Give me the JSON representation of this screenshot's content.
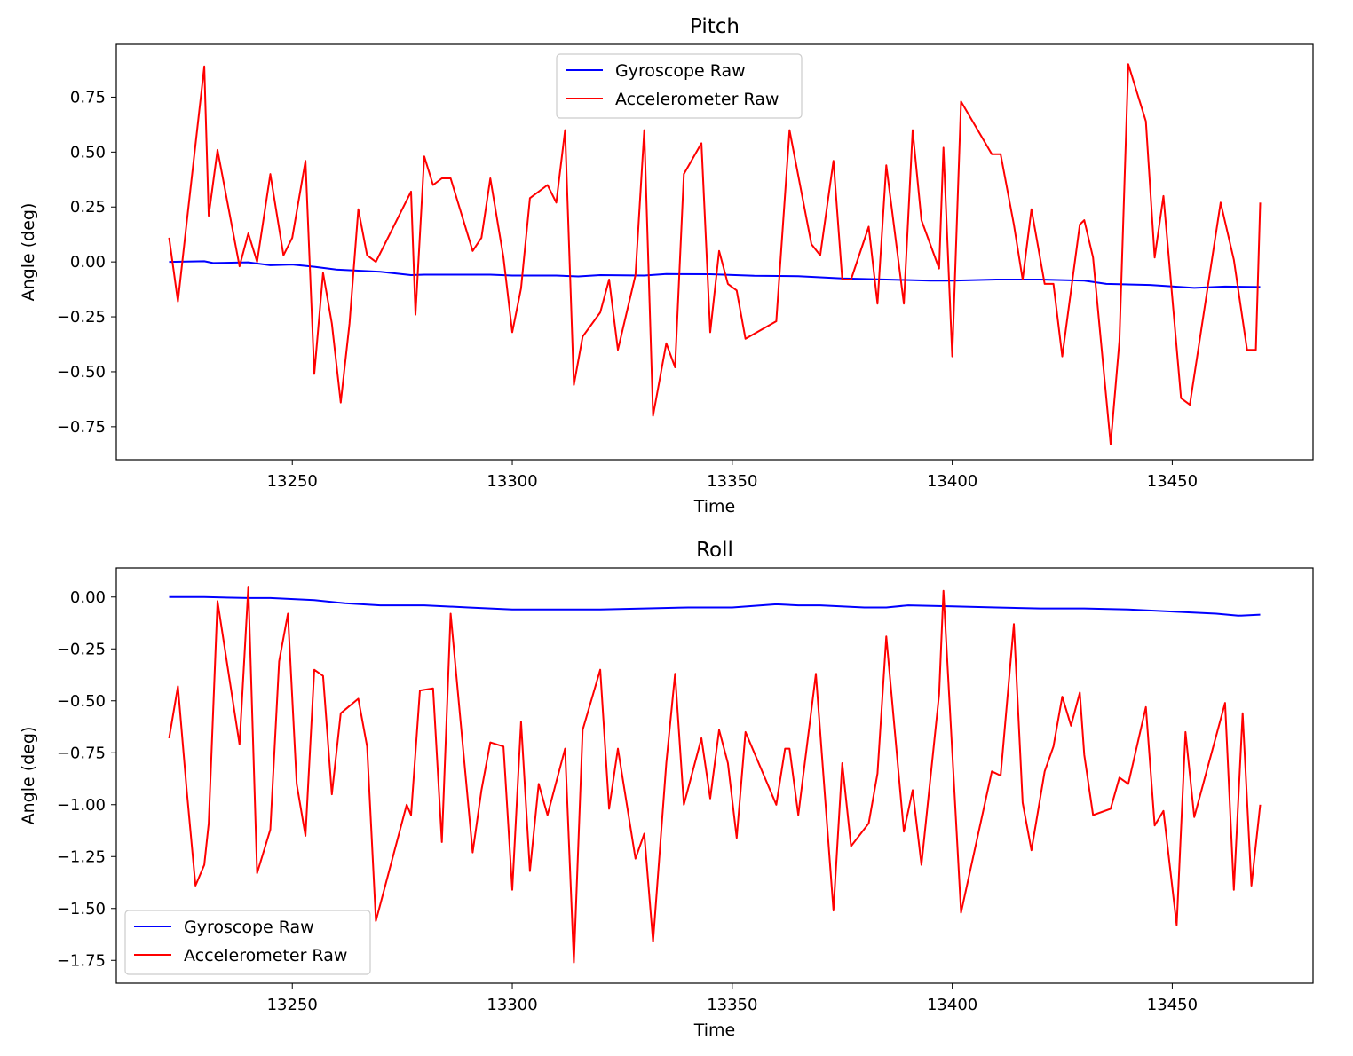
{
  "chart_data": [
    {
      "type": "line",
      "title": "Pitch",
      "xlabel": "Time",
      "ylabel": "Angle (deg)",
      "xlim": [
        13210,
        13482
      ],
      "ylim": [
        -0.9,
        0.99
      ],
      "xticks": [
        13250,
        13300,
        13350,
        13400,
        13450
      ],
      "yticks": [
        -0.75,
        -0.5,
        -0.25,
        0.0,
        0.25,
        0.5,
        0.75
      ],
      "ytick_labels": [
        "−0.75",
        "−0.50",
        "−0.25",
        "0.00",
        "0.25",
        "0.50",
        "0.75"
      ],
      "legend_position": "upper center",
      "grid": false,
      "series": [
        {
          "name": "Gyroscope Raw",
          "color": "#0000ff",
          "x": [
            13222,
            13230,
            13232,
            13240,
            13245,
            13250,
            13255,
            13260,
            13270,
            13277,
            13280,
            13295,
            13300,
            13310,
            13315,
            13320,
            13330,
            13335,
            13345,
            13355,
            13365,
            13375,
            13385,
            13395,
            13400,
            13410,
            13420,
            13430,
            13435,
            13445,
            13455,
            13462,
            13470
          ],
          "y": [
            0.0,
            0.003,
            -0.005,
            -0.002,
            -0.015,
            -0.012,
            -0.022,
            -0.035,
            -0.045,
            -0.06,
            -0.058,
            -0.058,
            -0.062,
            -0.062,
            -0.066,
            -0.06,
            -0.062,
            -0.055,
            -0.056,
            -0.063,
            -0.065,
            -0.075,
            -0.08,
            -0.085,
            -0.085,
            -0.08,
            -0.08,
            -0.085,
            -0.1,
            -0.105,
            -0.118,
            -0.112,
            -0.114
          ]
        },
        {
          "name": "Accelerometer Raw",
          "color": "#ff0000",
          "x": [
            13222,
            13224,
            13226,
            13230,
            13231,
            13233,
            13238,
            13240,
            13242,
            13245,
            13248,
            13250,
            13253,
            13255,
            13257,
            13259,
            13261,
            13263,
            13265,
            13267,
            13269,
            13277,
            13278,
            13280,
            13282,
            13284,
            13286,
            13291,
            13293,
            13295,
            13298,
            13300,
            13302,
            13304,
            13308,
            13310,
            13312,
            13314,
            13316,
            13320,
            13322,
            13324,
            13328,
            13330,
            13332,
            13335,
            13337,
            13339,
            13343,
            13345,
            13347,
            13349,
            13351,
            13353,
            13360,
            13363,
            13368,
            13370,
            13373,
            13375,
            13377,
            13381,
            13383,
            13385,
            13389,
            13391,
            13393,
            13397,
            13398,
            13400,
            13402,
            13409,
            13411,
            13414,
            13416,
            13418,
            13421,
            13423,
            13425,
            13429,
            13430,
            13432,
            13436,
            13438,
            13440,
            13444,
            13446,
            13448,
            13452,
            13454,
            13461,
            13464,
            13467,
            13469,
            13470
          ],
          "y": [
            0.11,
            -0.18,
            0.18,
            0.89,
            0.21,
            0.51,
            -0.02,
            0.13,
            0.0,
            0.4,
            0.03,
            0.11,
            0.46,
            -0.51,
            -0.05,
            -0.28,
            -0.64,
            -0.28,
            0.24,
            0.03,
            0.0,
            0.32,
            -0.24,
            0.48,
            0.35,
            0.38,
            0.38,
            0.05,
            0.11,
            0.38,
            0.02,
            -0.32,
            -0.12,
            0.29,
            0.35,
            0.27,
            0.6,
            -0.56,
            -0.34,
            -0.23,
            -0.08,
            -0.4,
            -0.06,
            0.6,
            -0.7,
            -0.37,
            -0.48,
            0.4,
            0.54,
            -0.32,
            0.05,
            -0.1,
            -0.13,
            -0.35,
            -0.27,
            0.6,
            0.08,
            0.03,
            0.46,
            -0.08,
            -0.08,
            0.16,
            -0.19,
            0.44,
            -0.19,
            0.6,
            0.19,
            -0.03,
            0.52,
            -0.43,
            0.73,
            0.49,
            0.49,
            0.17,
            -0.08,
            0.24,
            -0.1,
            -0.1,
            -0.43,
            0.17,
            0.19,
            0.02,
            -0.83,
            -0.36,
            0.9,
            0.64,
            0.02,
            0.3,
            -0.62,
            -0.65,
            0.27,
            0.01,
            -0.4,
            -0.4,
            0.27
          ]
        }
      ]
    },
    {
      "type": "line",
      "title": "Roll",
      "xlabel": "Time",
      "ylabel": "Angle (deg)",
      "xlim": [
        13210,
        13482
      ],
      "ylim": [
        -1.86,
        0.14
      ],
      "xticks": [
        13250,
        13300,
        13350,
        13400,
        13450
      ],
      "yticks": [
        -1.75,
        -1.5,
        -1.25,
        -1.0,
        -0.75,
        -0.5,
        -0.25,
        0.0
      ],
      "ytick_labels": [
        "−1.75",
        "−1.50",
        "−1.25",
        "−1.00",
        "−0.75",
        "−0.50",
        "−0.25",
        "0.00"
      ],
      "legend_position": "lower left",
      "grid": false,
      "series": [
        {
          "name": "Gyroscope Raw",
          "color": "#0000ff",
          "x": [
            13222,
            13230,
            13240,
            13245,
            13255,
            13262,
            13270,
            13280,
            13290,
            13300,
            13310,
            13320,
            13330,
            13340,
            13350,
            13360,
            13365,
            13370,
            13380,
            13385,
            13390,
            13400,
            13410,
            13420,
            13430,
            13440,
            13450,
            13460,
            13465,
            13470
          ],
          "y": [
            0.0,
            0.0,
            -0.005,
            -0.005,
            -0.015,
            -0.03,
            -0.04,
            -0.04,
            -0.05,
            -0.06,
            -0.06,
            -0.06,
            -0.055,
            -0.05,
            -0.05,
            -0.035,
            -0.04,
            -0.04,
            -0.05,
            -0.05,
            -0.04,
            -0.045,
            -0.05,
            -0.055,
            -0.055,
            -0.06,
            -0.07,
            -0.08,
            -0.09,
            -0.085
          ]
        },
        {
          "name": "Accelerometer Raw",
          "color": "#ff0000",
          "x": [
            13222,
            13224,
            13226,
            13228,
            13230,
            13231,
            13233,
            13238,
            13240,
            13242,
            13245,
            13247,
            13249,
            13251,
            13253,
            13255,
            13257,
            13259,
            13261,
            13265,
            13267,
            13269,
            13276,
            13277,
            13279,
            13282,
            13284,
            13286,
            13291,
            13293,
            13295,
            13298,
            13300,
            13302,
            13304,
            13306,
            13308,
            13312,
            13314,
            13316,
            13320,
            13322,
            13324,
            13328,
            13330,
            13332,
            13335,
            13337,
            13339,
            13343,
            13345,
            13347,
            13349,
            13351,
            13353,
            13360,
            13362,
            13363,
            13365,
            13369,
            13373,
            13375,
            13377,
            13381,
            13383,
            13385,
            13389,
            13391,
            13393,
            13397,
            13398,
            13402,
            13409,
            13411,
            13414,
            13416,
            13418,
            13421,
            13423,
            13425,
            13427,
            13429,
            13430,
            13432,
            13436,
            13438,
            13440,
            13444,
            13446,
            13448,
            13451,
            13453,
            13455,
            13462,
            13464,
            13466,
            13468,
            13470
          ],
          "y": [
            -0.68,
            -0.43,
            -0.93,
            -1.39,
            -1.29,
            -1.09,
            -0.02,
            -0.71,
            0.05,
            -1.33,
            -1.12,
            -0.31,
            -0.08,
            -0.9,
            -1.15,
            -0.35,
            -0.38,
            -0.95,
            -0.56,
            -0.49,
            -0.72,
            -1.56,
            -1.0,
            -1.05,
            -0.45,
            -0.44,
            -1.18,
            -0.08,
            -1.23,
            -0.93,
            -0.7,
            -0.72,
            -1.41,
            -0.6,
            -1.32,
            -0.9,
            -1.05,
            -0.73,
            -1.76,
            -0.64,
            -0.35,
            -1.02,
            -0.73,
            -1.26,
            -1.14,
            -1.66,
            -0.8,
            -0.37,
            -1.0,
            -0.68,
            -0.97,
            -0.64,
            -0.8,
            -1.16,
            -0.65,
            -1.0,
            -0.73,
            -0.73,
            -1.05,
            -0.37,
            -1.51,
            -0.8,
            -1.2,
            -1.09,
            -0.85,
            -0.19,
            -1.13,
            -0.93,
            -1.29,
            -0.47,
            0.03,
            -1.52,
            -0.84,
            -0.86,
            -0.13,
            -0.99,
            -1.22,
            -0.84,
            -0.72,
            -0.48,
            -0.62,
            -0.46,
            -0.76,
            -1.05,
            -1.02,
            -0.87,
            -0.9,
            -0.53,
            -1.1,
            -1.03,
            -1.58,
            -0.65,
            -1.06,
            -0.51,
            -1.41,
            -0.56,
            -1.39,
            -1.0
          ]
        }
      ]
    }
  ]
}
